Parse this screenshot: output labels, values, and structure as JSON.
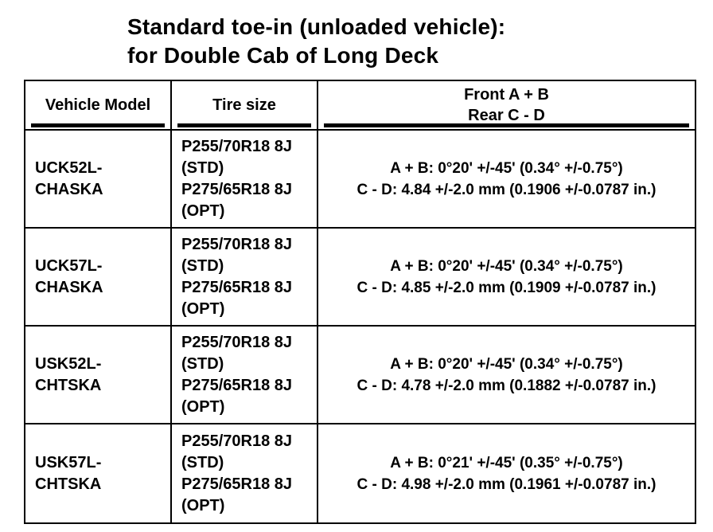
{
  "title": {
    "line1": "Standard toe-in (unloaded vehicle):",
    "line2": "for Double Cab of Long Deck"
  },
  "table": {
    "headers": {
      "vehicle_model": "Vehicle Model",
      "tire_size": "Tire size",
      "spec_line1": "Front A + B",
      "spec_line2": "Rear C - D"
    },
    "rows": [
      {
        "model_line1": "UCK52L-",
        "model_line2": "CHASKA",
        "tire_lines": [
          "P255/70R18 8J",
          "(STD)",
          "P275/65R18 8J",
          "(OPT)"
        ],
        "spec_ab": "A + B: 0°20' +/-45' (0.34° +/-0.75°)",
        "spec_cd": "C - D: 4.84 +/-2.0 mm (0.1906 +/-0.0787 in.)"
      },
      {
        "model_line1": "UCK57L-",
        "model_line2": "CHASKA",
        "tire_lines": [
          "P255/70R18 8J",
          "(STD)",
          "P275/65R18 8J",
          "(OPT)"
        ],
        "spec_ab": "A + B: 0°20' +/-45' (0.34° +/-0.75°)",
        "spec_cd": "C - D: 4.85 +/-2.0 mm (0.1909 +/-0.0787 in.)"
      },
      {
        "model_line1": "USK52L-",
        "model_line2": "CHTSKA",
        "tire_lines": [
          "P255/70R18 8J",
          "(STD)",
          "P275/65R18 8J",
          "(OPT)"
        ],
        "spec_ab": "A + B: 0°20' +/-45' (0.34° +/-0.75°)",
        "spec_cd": "C - D: 4.78 +/-2.0 mm (0.1882 +/-0.0787 in.)"
      },
      {
        "model_line1": "USK57L-",
        "model_line2": "CHTSKA",
        "tire_lines": [
          "P255/70R18 8J",
          "(STD)",
          "P275/65R18 8J",
          "(OPT)"
        ],
        "spec_ab": "A + B: 0°21' +/-45' (0.35° +/-0.75°)",
        "spec_cd": "C - D: 4.98 +/-2.0 mm (0.1961 +/-0.0787 in.)"
      }
    ]
  }
}
